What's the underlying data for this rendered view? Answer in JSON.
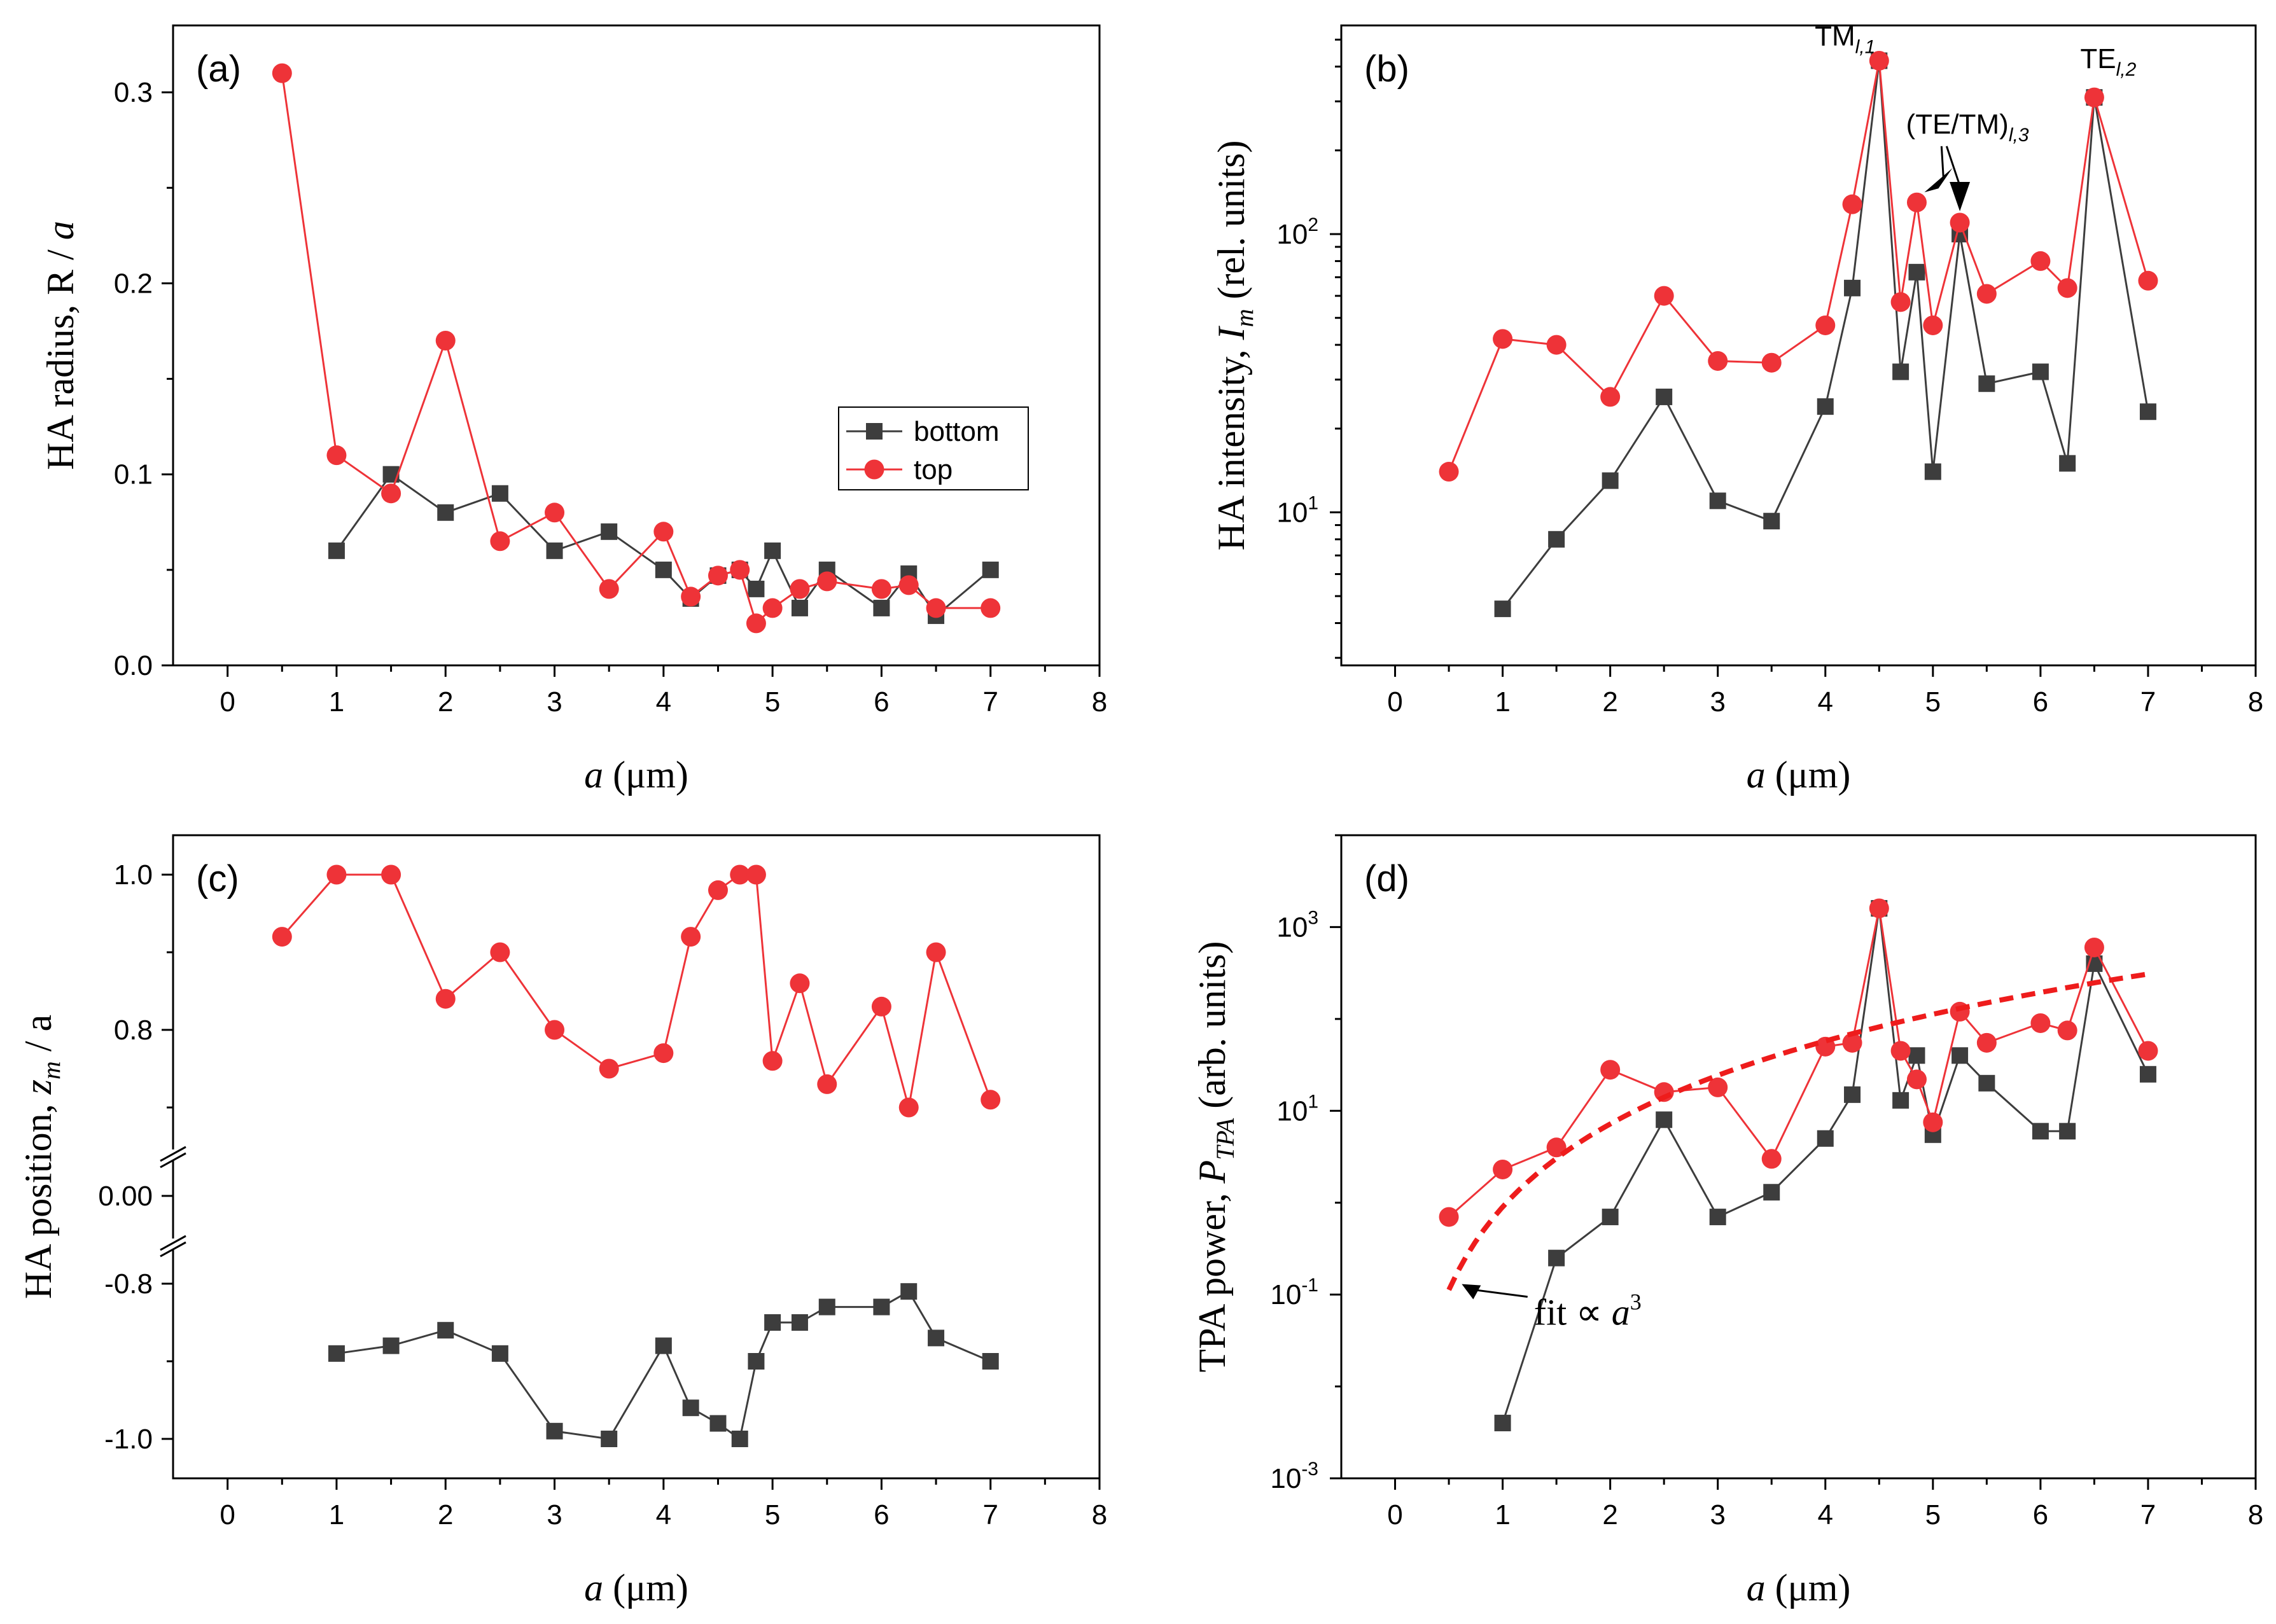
{
  "colors": {
    "bottom": "#3d3d3d",
    "top": "#ee3338",
    "fit": "#ee1c1c"
  },
  "chart_data": [
    {
      "id": "a",
      "type": "line",
      "panel_label": "(a)",
      "ylabel_text": "HA radius, R / ",
      "ylabel_var": "a",
      "xlabel_var": "a",
      "xlabel_unit": " (μm)",
      "xlim": [
        -0.5,
        8
      ],
      "ylim": [
        0,
        0.335
      ],
      "yscale": "linear",
      "xticks": [
        "0",
        "1",
        "2",
        "3",
        "4",
        "5",
        "6",
        "7",
        "8"
      ],
      "yticks": [
        "0.0",
        "0.1",
        "0.2",
        "0.3"
      ],
      "legend_position": "middle-right",
      "series": [
        {
          "name": "bottom",
          "marker": "square",
          "x": [
            1,
            1.5,
            2,
            2.5,
            3,
            3.5,
            4,
            4.25,
            4.5,
            4.7,
            4.85,
            5,
            5.25,
            5.5,
            6,
            6.25,
            6.5,
            7
          ],
          "y": [
            0.06,
            0.1,
            0.08,
            0.09,
            0.06,
            0.07,
            0.05,
            0.035,
            0.047,
            0.05,
            0.04,
            0.06,
            0.03,
            0.05,
            0.03,
            0.048,
            0.026,
            0.05
          ]
        },
        {
          "name": "top",
          "marker": "circle",
          "x": [
            0.5,
            1,
            1.5,
            2,
            2.5,
            3,
            3.5,
            4,
            4.25,
            4.5,
            4.7,
            4.85,
            5,
            5.25,
            5.5,
            6,
            6.25,
            6.5,
            7
          ],
          "y": [
            0.31,
            0.11,
            0.09,
            0.17,
            0.065,
            0.08,
            0.04,
            0.07,
            0.036,
            0.047,
            0.05,
            0.022,
            0.03,
            0.04,
            0.044,
            0.04,
            0.042,
            0.03,
            0.03
          ]
        }
      ]
    },
    {
      "id": "b",
      "type": "line",
      "panel_label": "(b)",
      "ylabel_text": "HA intensity, ",
      "ylabel_var": "I",
      "ylabel_sub": "m",
      "ylabel_tail": " (rel. units)",
      "xlabel_var": "a",
      "xlabel_unit": " (μm)",
      "xlim": [
        -0.5,
        8
      ],
      "yscale": "log",
      "ylog_range": [
        0.45,
        2.75
      ],
      "xticks": [
        "0",
        "1",
        "2",
        "3",
        "4",
        "5",
        "6",
        "7",
        "8"
      ],
      "yticks": [
        {
          "base": "10",
          "exp": "1"
        },
        {
          "base": "10",
          "exp": "2"
        }
      ],
      "annotations": [
        {
          "main": "TM",
          "sub": "l,1"
        },
        {
          "main": "TE",
          "sub": "l,2"
        },
        {
          "main": "(TE/TM)",
          "sub": "l,3"
        }
      ],
      "series": [
        {
          "name": "bottom",
          "marker": "square",
          "x": [
            1,
            1.5,
            2,
            2.5,
            3,
            3.5,
            4,
            4.25,
            4.5,
            4.7,
            4.85,
            5,
            5.25,
            5.5,
            6,
            6.25,
            6.5,
            7
          ],
          "y": [
            4.5,
            8,
            13,
            26,
            11,
            9.3,
            24,
            64,
            420,
            32,
            73,
            14,
            100,
            29,
            32,
            15,
            310,
            23
          ]
        },
        {
          "name": "top",
          "marker": "circle",
          "x": [
            0.5,
            1,
            1.5,
            2,
            2.5,
            3,
            3.5,
            4,
            4.25,
            4.5,
            4.7,
            4.85,
            5,
            5.25,
            5.5,
            6,
            6.25,
            6.5,
            7
          ],
          "y": [
            14,
            42,
            40,
            26,
            60,
            35,
            34.5,
            47,
            128,
            420,
            57,
            130,
            47,
            110,
            61,
            80,
            64,
            310,
            68
          ]
        }
      ]
    },
    {
      "id": "c",
      "type": "line",
      "panel_label": "(c)",
      "ylabel_text": "HA position, ",
      "ylabel_var": "z",
      "ylabel_sub": "m",
      "ylabel_tail": " / a",
      "xlabel_var": "a",
      "xlabel_unit": " (μm)",
      "xlim": [
        -0.5,
        8
      ],
      "yscale": "broken",
      "xticks": [
        "0",
        "1",
        "2",
        "3",
        "4",
        "5",
        "6",
        "7",
        "8"
      ],
      "yticks": [
        "1.0",
        "0.8",
        "0.00",
        "-0.8",
        "-1.0"
      ],
      "series": [
        {
          "name": "top",
          "marker": "circle",
          "x": [
            0.5,
            1,
            1.5,
            2,
            2.5,
            3,
            3.5,
            4,
            4.25,
            4.5,
            4.7,
            4.85,
            5,
            5.25,
            5.5,
            6,
            6.25,
            6.5,
            7
          ],
          "y": [
            0.92,
            1.0,
            1.0,
            0.84,
            0.9,
            0.8,
            0.75,
            0.77,
            0.92,
            0.98,
            1.0,
            1.0,
            0.76,
            0.86,
            0.73,
            0.83,
            0.7,
            0.9,
            0.71
          ]
        },
        {
          "name": "bottom",
          "marker": "square",
          "x": [
            1,
            1.5,
            2,
            2.5,
            3,
            3.5,
            4,
            4.25,
            4.5,
            4.7,
            4.85,
            5,
            5.25,
            5.5,
            6,
            6.25,
            6.5,
            7
          ],
          "y": [
            -0.89,
            -0.88,
            -0.86,
            -0.89,
            -0.99,
            -1.0,
            -0.88,
            -0.96,
            -0.98,
            -1.0,
            -0.9,
            -0.85,
            -0.85,
            -0.83,
            -0.83,
            -0.81,
            -0.87,
            -0.9
          ]
        }
      ]
    },
    {
      "id": "d",
      "type": "line",
      "panel_label": "(d)",
      "ylabel_text": "TPA power, ",
      "ylabel_var": "P",
      "ylabel_sub": "TPA",
      "ylabel_tail": " (arb. units)",
      "xlabel_var": "a",
      "xlabel_unit": " (μm)",
      "xlim": [
        -0.5,
        8
      ],
      "yscale": "log",
      "ylog_range": [
        -3,
        4
      ],
      "xticks": [
        "0",
        "1",
        "2",
        "3",
        "4",
        "5",
        "6",
        "7",
        "8"
      ],
      "yticks": [
        {
          "base": "10",
          "exp": "-3"
        },
        {
          "base": "10",
          "exp": "-1"
        },
        {
          "base": "10",
          "exp": "1"
        },
        {
          "base": "10",
          "exp": "3"
        }
      ],
      "fit_label": {
        "text": "fit ∝ ",
        "var": "a",
        "exp": "3"
      },
      "fit_curve": {
        "coef": 0.9,
        "power": 3,
        "x_range": [
          0.5,
          7
        ]
      },
      "series": [
        {
          "name": "bottom",
          "marker": "square",
          "x": [
            1,
            1.5,
            2,
            2.5,
            3,
            3.5,
            4,
            4.25,
            4.5,
            4.7,
            4.85,
            5,
            5.25,
            5.5,
            6,
            6.25,
            6.5,
            7
          ],
          "y": [
            0.004,
            0.25,
            0.7,
            8,
            0.7,
            1.3,
            5,
            15,
            1600,
            13,
            40,
            5.5,
            40,
            20,
            6,
            6,
            400,
            25
          ]
        },
        {
          "name": "top",
          "marker": "circle",
          "x": [
            0.5,
            1,
            1.5,
            2,
            2.5,
            3,
            3.5,
            4,
            4.25,
            4.5,
            4.7,
            4.85,
            5,
            5.25,
            5.5,
            6,
            6.25,
            6.5,
            7
          ],
          "y": [
            0.7,
            2.3,
            4,
            28,
            16,
            18,
            3,
            50,
            55,
            1600,
            45,
            22,
            7.5,
            120,
            55,
            90,
            75,
            600,
            45
          ]
        }
      ]
    }
  ]
}
